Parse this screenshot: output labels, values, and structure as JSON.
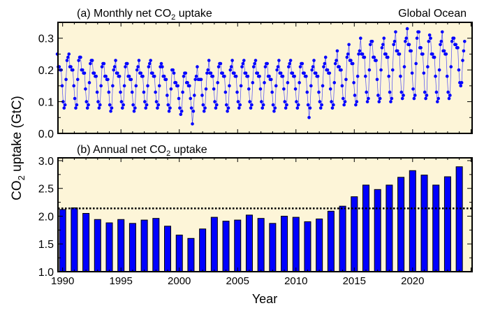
{
  "figure": {
    "ylabel": {
      "prefix": "CO",
      "sub": "2",
      "suffix": " uptake (GtC)"
    },
    "xlabel": "Year",
    "background_color": "#fdf5d8",
    "series_color": "#0000ff"
  },
  "chart_data": [
    {
      "type": "line",
      "panel": "a",
      "title": {
        "prefix": "(a) Monthly net CO",
        "sub": "2",
        "suffix": " uptake"
      },
      "annotation": "Global Ocean",
      "xlim": [
        1989.6,
        2025.1
      ],
      "ylim": [
        0,
        0.35
      ],
      "yticks": [
        "0.0",
        "0.1",
        "0.2",
        "0.3"
      ],
      "grid": false,
      "markers": true,
      "years": [
        1990,
        1991,
        1992,
        1993,
        1994,
        1995,
        1996,
        1997,
        1998,
        1999,
        2000,
        2001,
        2002,
        2003,
        2004,
        2005,
        2006,
        2007,
        2008,
        2009,
        2010,
        2011,
        2012,
        2013,
        2014,
        2015,
        2016,
        2017,
        2018,
        2019,
        2020,
        2021,
        2022,
        2023,
        2024
      ],
      "monthly_values": [
        [
          0.25,
          0.21,
          0.21,
          0.2,
          0.2,
          0.15,
          0.1,
          0.08,
          0.09,
          0.17,
          0.23,
          0.24
        ],
        [
          0.25,
          0.21,
          0.21,
          0.2,
          0.2,
          0.15,
          0.11,
          0.08,
          0.09,
          0.17,
          0.23,
          0.24
        ],
        [
          0.24,
          0.2,
          0.2,
          0.19,
          0.19,
          0.14,
          0.1,
          0.08,
          0.09,
          0.16,
          0.22,
          0.23
        ],
        [
          0.23,
          0.19,
          0.19,
          0.18,
          0.18,
          0.13,
          0.1,
          0.08,
          0.09,
          0.15,
          0.21,
          0.22
        ],
        [
          0.22,
          0.18,
          0.18,
          0.17,
          0.17,
          0.13,
          0.09,
          0.07,
          0.08,
          0.15,
          0.2,
          0.21
        ],
        [
          0.23,
          0.19,
          0.19,
          0.18,
          0.18,
          0.13,
          0.1,
          0.08,
          0.09,
          0.15,
          0.21,
          0.22
        ],
        [
          0.22,
          0.18,
          0.18,
          0.17,
          0.17,
          0.13,
          0.09,
          0.07,
          0.08,
          0.15,
          0.2,
          0.21
        ],
        [
          0.23,
          0.19,
          0.19,
          0.18,
          0.18,
          0.13,
          0.1,
          0.08,
          0.09,
          0.15,
          0.21,
          0.22
        ],
        [
          0.23,
          0.19,
          0.19,
          0.18,
          0.18,
          0.13,
          0.1,
          0.08,
          0.09,
          0.15,
          0.21,
          0.22
        ],
        [
          0.21,
          0.18,
          0.18,
          0.17,
          0.17,
          0.12,
          0.09,
          0.07,
          0.08,
          0.14,
          0.2,
          0.2
        ],
        [
          0.19,
          0.16,
          0.16,
          0.15,
          0.15,
          0.11,
          0.08,
          0.06,
          0.07,
          0.13,
          0.18,
          0.19
        ],
        [
          0.19,
          0.16,
          0.16,
          0.15,
          0.15,
          0.11,
          0.08,
          0.03,
          0.07,
          0.12,
          0.17,
          0.18
        ],
        [
          0.21,
          0.17,
          0.17,
          0.17,
          0.17,
          0.12,
          0.09,
          0.07,
          0.08,
          0.14,
          0.19,
          0.2
        ],
        [
          0.23,
          0.19,
          0.19,
          0.18,
          0.18,
          0.14,
          0.1,
          0.08,
          0.09,
          0.16,
          0.21,
          0.22
        ],
        [
          0.22,
          0.19,
          0.19,
          0.18,
          0.18,
          0.13,
          0.09,
          0.07,
          0.08,
          0.15,
          0.2,
          0.21
        ],
        [
          0.23,
          0.19,
          0.19,
          0.18,
          0.18,
          0.13,
          0.1,
          0.08,
          0.09,
          0.15,
          0.21,
          0.22
        ],
        [
          0.23,
          0.19,
          0.19,
          0.18,
          0.18,
          0.14,
          0.1,
          0.08,
          0.09,
          0.16,
          0.21,
          0.22
        ],
        [
          0.23,
          0.19,
          0.19,
          0.18,
          0.18,
          0.14,
          0.1,
          0.08,
          0.09,
          0.16,
          0.21,
          0.22
        ],
        [
          0.22,
          0.18,
          0.18,
          0.17,
          0.17,
          0.13,
          0.09,
          0.07,
          0.08,
          0.15,
          0.2,
          0.21
        ],
        [
          0.23,
          0.19,
          0.19,
          0.18,
          0.18,
          0.14,
          0.1,
          0.08,
          0.09,
          0.16,
          0.21,
          0.22
        ],
        [
          0.23,
          0.19,
          0.19,
          0.18,
          0.18,
          0.14,
          0.1,
          0.08,
          0.09,
          0.16,
          0.21,
          0.22
        ],
        [
          0.22,
          0.19,
          0.19,
          0.18,
          0.18,
          0.13,
          0.09,
          0.05,
          0.08,
          0.15,
          0.2,
          0.21
        ],
        [
          0.23,
          0.19,
          0.19,
          0.18,
          0.18,
          0.13,
          0.1,
          0.08,
          0.09,
          0.15,
          0.21,
          0.22
        ],
        [
          0.24,
          0.2,
          0.2,
          0.19,
          0.19,
          0.14,
          0.1,
          0.08,
          0.09,
          0.16,
          0.22,
          0.23
        ],
        [
          0.26,
          0.21,
          0.21,
          0.2,
          0.2,
          0.15,
          0.11,
          0.09,
          0.1,
          0.17,
          0.24,
          0.25
        ],
        [
          0.28,
          0.23,
          0.23,
          0.22,
          0.22,
          0.16,
          0.12,
          0.09,
          0.1,
          0.18,
          0.25,
          0.26
        ],
        [
          0.3,
          0.25,
          0.25,
          0.24,
          0.24,
          0.18,
          0.13,
          0.1,
          0.11,
          0.2,
          0.28,
          0.29
        ],
        [
          0.29,
          0.24,
          0.24,
          0.23,
          0.23,
          0.17,
          0.12,
          0.1,
          0.11,
          0.2,
          0.27,
          0.28
        ],
        [
          0.3,
          0.25,
          0.25,
          0.24,
          0.24,
          0.18,
          0.13,
          0.1,
          0.11,
          0.2,
          0.28,
          0.29
        ],
        [
          0.32,
          0.26,
          0.26,
          0.25,
          0.25,
          0.18,
          0.13,
          0.11,
          0.12,
          0.21,
          0.29,
          0.3
        ],
        [
          0.33,
          0.28,
          0.28,
          0.26,
          0.26,
          0.19,
          0.14,
          0.11,
          0.12,
          0.22,
          0.3,
          0.32
        ],
        [
          0.32,
          0.27,
          0.27,
          0.25,
          0.25,
          0.19,
          0.13,
          0.11,
          0.12,
          0.21,
          0.29,
          0.31
        ],
        [
          0.3,
          0.25,
          0.25,
          0.24,
          0.24,
          0.18,
          0.13,
          0.1,
          0.11,
          0.2,
          0.28,
          0.29
        ],
        [
          0.32,
          0.26,
          0.26,
          0.25,
          0.25,
          0.18,
          0.13,
          0.11,
          0.12,
          0.21,
          0.29,
          0.3
        ],
        [
          0.3,
          0.28,
          0.28,
          0.27,
          0.27,
          0.2,
          0.16,
          0.15,
          0.16,
          0.23,
          0.26,
          0.29
        ]
      ]
    },
    {
      "type": "bar",
      "panel": "b",
      "title": {
        "prefix": "(b) Annual net CO",
        "sub": "2",
        "suffix": " uptake"
      },
      "xlim": [
        1989.6,
        2025.1
      ],
      "ylim": [
        1.0,
        3.05
      ],
      "yticks": [
        "1.0",
        "1.5",
        "2.0",
        "2.5",
        "3.0"
      ],
      "xticks": [
        "1990",
        "1995",
        "2000",
        "2005",
        "2010",
        "2015",
        "2020"
      ],
      "grid": false,
      "reference_line": {
        "value": 2.14,
        "style": "dotted"
      },
      "categories": [
        1990,
        1991,
        1992,
        1993,
        1994,
        1995,
        1996,
        1997,
        1998,
        1999,
        2000,
        2001,
        2002,
        2003,
        2004,
        2005,
        2006,
        2007,
        2008,
        2009,
        2010,
        2011,
        2012,
        2013,
        2014,
        2015,
        2016,
        2017,
        2018,
        2019,
        2020,
        2021,
        2022,
        2023,
        2024
      ],
      "values": [
        2.12,
        2.15,
        2.05,
        1.94,
        1.88,
        1.94,
        1.87,
        1.93,
        1.96,
        1.82,
        1.66,
        1.6,
        1.77,
        1.98,
        1.91,
        1.93,
        2.02,
        1.96,
        1.87,
        2.0,
        1.98,
        1.9,
        1.95,
        2.09,
        2.18,
        2.35,
        2.56,
        2.48,
        2.56,
        2.7,
        2.82,
        2.74,
        2.56,
        2.71,
        2.89
      ]
    }
  ]
}
